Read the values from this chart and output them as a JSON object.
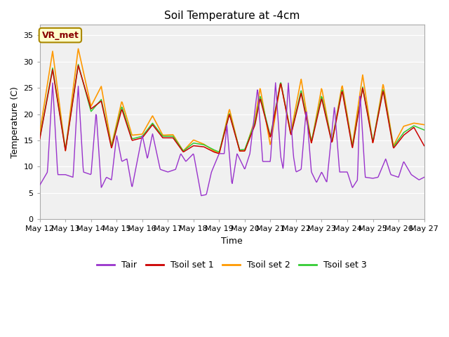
{
  "title": "Soil Temperature at -4cm",
  "xlabel": "Time",
  "ylabel": "Temperature (C)",
  "ylim": [
    0,
    37
  ],
  "yticks": [
    0,
    5,
    10,
    15,
    20,
    25,
    30,
    35
  ],
  "x_tick_labels": [
    "May 12",
    "May 13",
    "May 14",
    "May 15",
    "May 16",
    "May 17",
    "May 18",
    "May 19",
    "May 20",
    "May 21",
    "May 22",
    "May 23",
    "May 24",
    "May 25",
    "May 26",
    "May 27"
  ],
  "colors": {
    "Tair": "#9933cc",
    "Tsoil1": "#cc0000",
    "Tsoil2": "#ff9900",
    "Tsoil3": "#33cc33"
  },
  "bg_color": "#e8e8e8",
  "plot_bg": "#f0f0f0",
  "annotation_text": "VR_met",
  "annotation_color": "#880000",
  "annotation_bg": "#ffffcc",
  "annotation_edge": "#aa8800"
}
